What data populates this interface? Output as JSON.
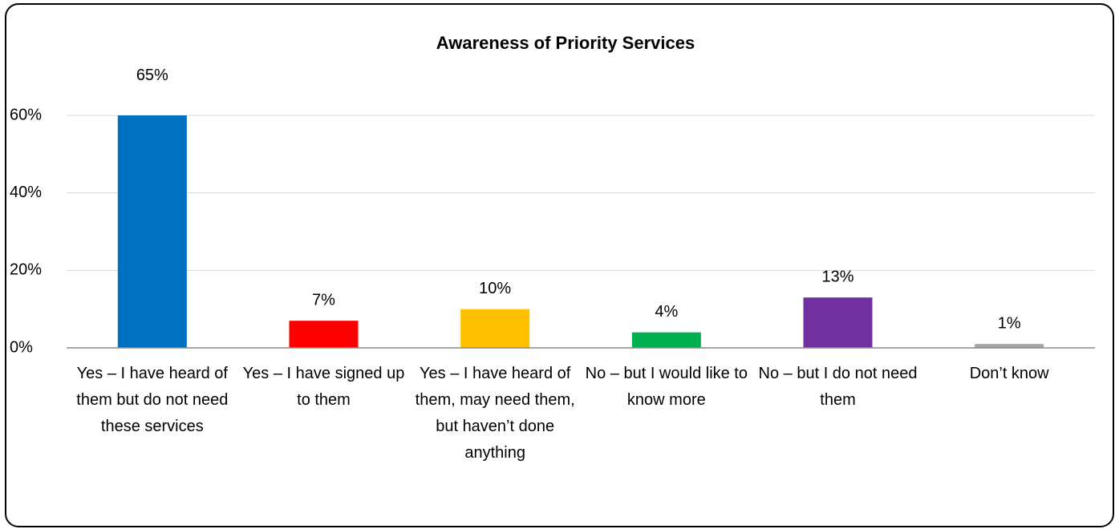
{
  "chart_data": {
    "type": "bar",
    "title": "Awareness of Priority Services",
    "categories": [
      "Yes – I have heard of them but do not need these services",
      "Yes – I have signed up to them",
      "Yes – I have heard of them, may need them, but haven’t done anything",
      "No – but I would like to know more",
      "No – but I do not need them",
      "Don’t know"
    ],
    "values": [
      65,
      7,
      10,
      4,
      13,
      1
    ],
    "value_labels": [
      "65%",
      "7%",
      "10%",
      "4%",
      "13%",
      "1%"
    ],
    "colors": [
      "#0070c0",
      "#ff0000",
      "#ffc000",
      "#00b050",
      "#7030a0",
      "#a5a5a5"
    ],
    "ylim": [
      0,
      60
    ],
    "yticks": [
      {
        "value": 0,
        "label": "0%"
      },
      {
        "value": 20,
        "label": "20%"
      },
      {
        "value": 40,
        "label": "40%"
      },
      {
        "value": 60,
        "label": "60%"
      }
    ],
    "grid": true
  }
}
